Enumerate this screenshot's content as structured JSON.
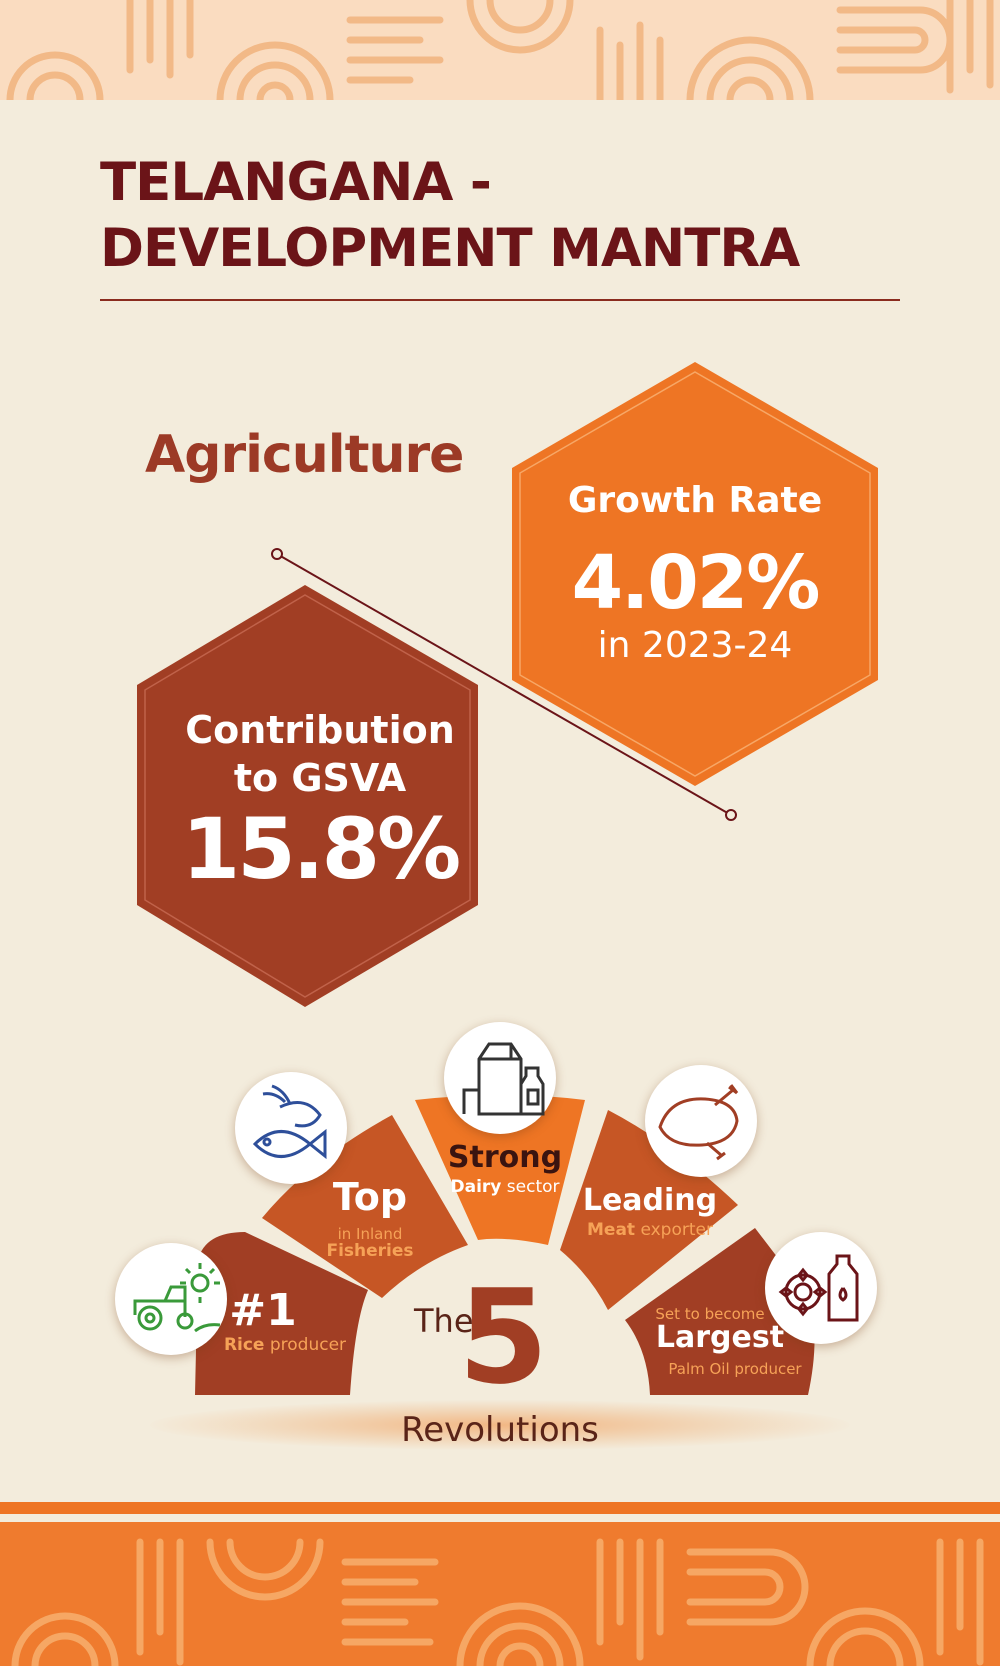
{
  "title": {
    "line1": "TELANGANA -",
    "line2": "DEVELOPMENT MANTRA"
  },
  "section": "Agriculture",
  "growth": {
    "label": "Growth Rate",
    "value": "4.02%",
    "period": "in 2023-24"
  },
  "contribution": {
    "line1": "Contribution",
    "line2": "to GSVA",
    "value": "15.8%"
  },
  "revolutions": {
    "the": "The",
    "number": "5",
    "label": "Revolutions",
    "items": [
      {
        "headline": "#1",
        "bold": "Rice",
        "rest": " producer",
        "icon": "tractor-sun-icon"
      },
      {
        "headline": "Top",
        "sub1": "in Inland",
        "sub2": "Fisheries",
        "icon": "shrimp-fish-icon"
      },
      {
        "headline": "Strong",
        "bold": "Dairy",
        "rest": " sector",
        "icon": "milk-icon"
      },
      {
        "headline": "Leading",
        "bold": "Meat",
        "rest": " exporter",
        "icon": "chicken-icon"
      },
      {
        "pre": "Set to become",
        "headline": "Largest",
        "post": "Palm Oil producer",
        "icon": "sunflower-oil-icon"
      }
    ]
  },
  "colors": {
    "background": "#f3ecdc",
    "title": "#6b1418",
    "orange": "#ee7524",
    "rust": "#a13e24",
    "light_orange": "#f6a257"
  }
}
